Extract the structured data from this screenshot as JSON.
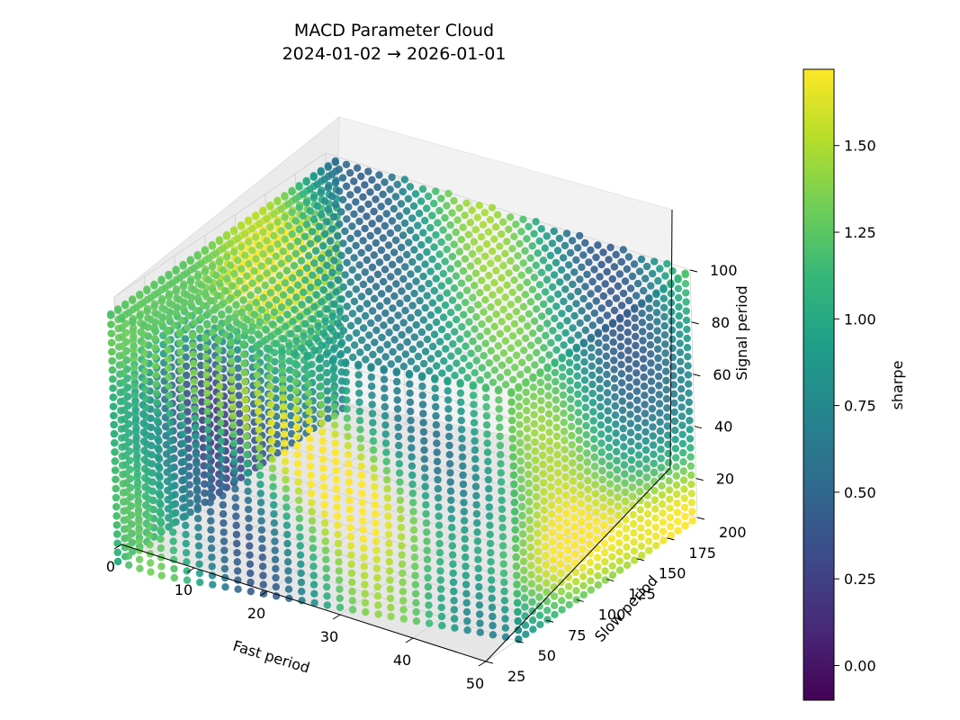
{
  "chart_data": {
    "type": "scatter",
    "projection": "3d",
    "title": "MACD Parameter Cloud",
    "subtitle": "2024-01-02 → 2026-01-01",
    "xlabel": "Fast period",
    "ylabel": "Slow period",
    "zlabel": "Signal period",
    "colorbar_label": "sharpe",
    "colormap": "viridis",
    "grid": true,
    "xlim": [
      0,
      50
    ],
    "ylim": [
      25,
      200
    ],
    "zlim": [
      5,
      100
    ],
    "clim": [
      -0.1,
      1.72
    ],
    "x_ticks": [
      "0",
      "10",
      "20",
      "30",
      "40",
      "50"
    ],
    "y_ticks": [
      "25",
      "50",
      "75",
      "100",
      "125",
      "150",
      "175",
      "200"
    ],
    "z_ticks": [
      "20",
      "40",
      "60",
      "80",
      "100"
    ],
    "colorbar_ticks": [
      "0.00",
      "0.25",
      "0.50",
      "0.75",
      "1.00",
      "1.25",
      "1.50"
    ],
    "colorbar_tick_values": [
      0.0,
      0.25,
      0.5,
      0.75,
      1.0,
      1.25,
      1.5
    ],
    "point_grid": {
      "fast_range": [
        2,
        50
      ],
      "slow_range": [
        10,
        200
      ],
      "signal_range": [
        5,
        100
      ],
      "constraint": "fast < slow"
    }
  }
}
